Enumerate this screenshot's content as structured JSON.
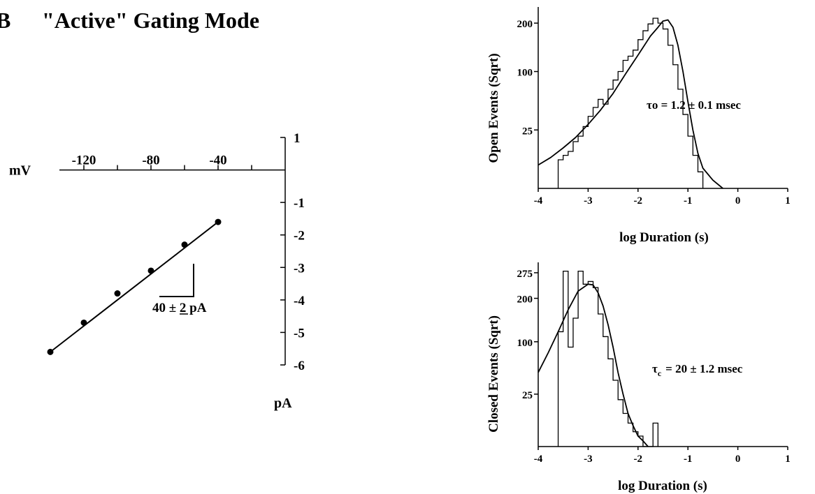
{
  "figure": {
    "panel_label": "B",
    "title": "\"Active\" Gating Mode"
  },
  "chart_data": [
    {
      "id": "iv",
      "type": "scatter",
      "xlabel": "mV",
      "ylabel": "pA",
      "xlim": [
        -140,
        0
      ],
      "ylim": [
        -6,
        1
      ],
      "x_ticks": [
        -120,
        -100,
        -80,
        -60,
        -40,
        -20
      ],
      "x_tick_labels": [
        "-120",
        "-80",
        "-40"
      ],
      "y_ticks": [
        1,
        -1,
        -2,
        -3,
        -4,
        -5,
        -6
      ],
      "y_tick_labels": [
        "1",
        "-1",
        "-2",
        "-3",
        "-4",
        "-5",
        "-6"
      ],
      "points": [
        {
          "x": -140,
          "y": -5.6
        },
        {
          "x": -120,
          "y": -4.7
        },
        {
          "x": -100,
          "y": -3.8
        },
        {
          "x": -80,
          "y": -3.1
        },
        {
          "x": -60,
          "y": -2.3
        },
        {
          "x": -40,
          "y": -1.6
        }
      ],
      "fit": {
        "x": [
          -140,
          -40
        ],
        "y": [
          -5.6,
          -1.6
        ]
      },
      "annotation": "40 ± 2 pA"
    },
    {
      "id": "open",
      "type": "line",
      "xlabel": "log Duration (s)",
      "ylabel": "Open Events (Sqrt)",
      "xlim": [
        -4,
        1
      ],
      "x_ticks": [
        -4,
        -3,
        -2,
        -1,
        0,
        1
      ],
      "x_tick_labels": [
        "-4",
        "-3",
        "-2",
        "-1",
        "0",
        "1"
      ],
      "y_scale": "sqrt",
      "ylim": [
        0,
        230
      ],
      "y_ticks": [
        25,
        100,
        200
      ],
      "y_tick_labels": [
        "25",
        "100",
        "200"
      ],
      "histogram": {
        "bin_edges": [
          -3.6,
          -3.5,
          -3.4,
          -3.3,
          -3.2,
          -3.1,
          -3.0,
          -2.9,
          -2.8,
          -2.7,
          -2.6,
          -2.5,
          -2.4,
          -2.3,
          -2.2,
          -2.1,
          -2.0,
          -1.9,
          -1.8,
          -1.7,
          -1.6,
          -1.5,
          -1.4,
          -1.3,
          -1.2,
          -1.1,
          -1.0,
          -0.9,
          -0.8,
          -0.7
        ],
        "counts": [
          6,
          8,
          10,
          16,
          20,
          28,
          38,
          48,
          58,
          52,
          72,
          86,
          100,
          120,
          128,
          140,
          162,
          182,
          198,
          212,
          200,
          186,
          150,
          112,
          72,
          40,
          20,
          8,
          2
        ]
      },
      "fit": {
        "x": [
          -4.0,
          -3.75,
          -3.5,
          -3.25,
          -3.0,
          -2.75,
          -2.5,
          -2.25,
          -2.0,
          -1.75,
          -1.6,
          -1.5,
          -1.4,
          -1.3,
          -1.2,
          -1.1,
          -1.0,
          -0.9,
          -0.8,
          -0.7,
          -0.5,
          -0.3
        ],
        "y": [
          4,
          7,
          12,
          19,
          30,
          45,
          66,
          96,
          130,
          170,
          190,
          205,
          208,
          190,
          150,
          100,
          55,
          25,
          9,
          3,
          0.5,
          0
        ]
      },
      "annotation": "τo = 1.2 ± 0.1 msec"
    },
    {
      "id": "closed",
      "type": "line",
      "xlabel": "log Duration (s)",
      "ylabel": "Closed Events (Sqrt)",
      "xlim": [
        -4,
        1
      ],
      "x_ticks": [
        -4,
        -3,
        -2,
        -1,
        0,
        1
      ],
      "x_tick_labels": [
        "-4",
        "-3",
        "-2",
        "-1",
        "0",
        "1"
      ],
      "y_scale": "sqrt",
      "ylim": [
        0,
        295
      ],
      "y_ticks": [
        25,
        100,
        200,
        275
      ],
      "y_tick_labels": [
        "25",
        "100",
        "200",
        "275"
      ],
      "histogram": {
        "bin_edges": [
          -3.6,
          -3.5,
          -3.4,
          -3.3,
          -3.2,
          -3.1,
          -3.0,
          -2.9,
          -2.8,
          -2.7,
          -2.6,
          -2.5,
          -2.4,
          -2.3,
          -2.2,
          -2.1,
          -2.0,
          -1.9,
          -1.8,
          -1.7,
          -1.6
        ],
        "counts": [
          120,
          280,
          90,
          150,
          280,
          240,
          248,
          230,
          160,
          110,
          70,
          40,
          20,
          10,
          5,
          2,
          1,
          0,
          0,
          5
        ]
      },
      "fit": {
        "x": [
          -4.0,
          -3.8,
          -3.6,
          -3.4,
          -3.2,
          -3.0,
          -2.9,
          -2.8,
          -2.7,
          -2.6,
          -2.5,
          -2.4,
          -2.3,
          -2.2,
          -2.1,
          -2.0,
          -1.9,
          -1.8
        ],
        "y": [
          50,
          80,
          120,
          170,
          220,
          240,
          238,
          215,
          180,
          135,
          90,
          50,
          25,
          10,
          4,
          1,
          0.3,
          0
        ]
      },
      "annotation_symbol": "τ",
      "annotation_subscript": "c",
      "annotation": "= 20 ± 1.2 msec"
    }
  ]
}
